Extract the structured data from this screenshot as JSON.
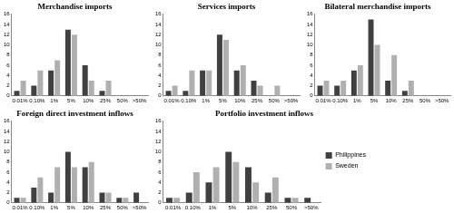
{
  "chart_data": [
    {
      "type": "bar",
      "title": "Merchandise imports",
      "categories": [
        "0.01%",
        "0.10%",
        "1%",
        "5%",
        "10%",
        "25%",
        "50%",
        ">50%"
      ],
      "series": [
        {
          "name": "Philippines",
          "color": "#404040",
          "values": [
            1,
            2,
            5,
            13,
            6,
            1,
            0,
            0
          ]
        },
        {
          "name": "Sweden",
          "color": "#b0b0b0",
          "values": [
            3,
            5,
            7,
            12,
            3,
            3,
            0,
            0
          ]
        }
      ],
      "ylim": [
        0,
        16
      ],
      "yticks": [
        0,
        2,
        4,
        6,
        8,
        10,
        12,
        14,
        16
      ],
      "grid": false
    },
    {
      "type": "bar",
      "title": "Services imports",
      "categories": [
        "0.01%",
        "0.10%",
        "1%",
        "5%",
        "10%",
        "25%",
        "50%",
        ">50%"
      ],
      "series": [
        {
          "name": "Philippines",
          "color": "#404040",
          "values": [
            1,
            1,
            5,
            12,
            5,
            3,
            0,
            0
          ]
        },
        {
          "name": "Sweden",
          "color": "#b0b0b0",
          "values": [
            2,
            5,
            5,
            11,
            6,
            2,
            2,
            0
          ]
        }
      ],
      "ylim": [
        0,
        16
      ],
      "yticks": [
        0,
        2,
        4,
        6,
        8,
        10,
        12,
        14,
        16
      ],
      "grid": false
    },
    {
      "type": "bar",
      "title": "Bilateral merchandise imports",
      "categories": [
        "0.01%",
        "0.10%",
        "1%",
        "5%",
        "10%",
        "25%",
        "50%",
        ">50%"
      ],
      "series": [
        {
          "name": "Philippines",
          "color": "#404040",
          "values": [
            2,
            2,
            5,
            15,
            3,
            1,
            0,
            0
          ]
        },
        {
          "name": "Sweden",
          "color": "#b0b0b0",
          "values": [
            3,
            3,
            6,
            10,
            8,
            3,
            0,
            0
          ]
        }
      ],
      "ylim": [
        0,
        16
      ],
      "yticks": [
        0,
        2,
        4,
        6,
        8,
        10,
        12,
        14,
        16
      ],
      "grid": false
    },
    {
      "type": "bar",
      "title": "Foreign direct investment inflows",
      "categories": [
        "0.01%",
        "0.10%",
        "1%",
        "5%",
        "10%",
        "25%",
        "50%",
        ">50%"
      ],
      "series": [
        {
          "name": "Philippines",
          "color": "#404040",
          "values": [
            1,
            3,
            2,
            10,
            7,
            2,
            1,
            2
          ]
        },
        {
          "name": "Sweden",
          "color": "#b0b0b0",
          "values": [
            1,
            5,
            7,
            7,
            8,
            2,
            1,
            0
          ]
        }
      ],
      "ylim": [
        0,
        16
      ],
      "yticks": [
        0,
        2,
        4,
        6,
        8,
        10,
        12,
        14,
        16
      ],
      "grid": false
    },
    {
      "type": "bar",
      "title": "Portfolio investment inflows",
      "categories": [
        "0.01%",
        "0.10%",
        "1%",
        "5%",
        "10%",
        "25%",
        "50%",
        ">50%"
      ],
      "series": [
        {
          "name": "Philippines",
          "color": "#404040",
          "values": [
            1,
            2,
            4,
            10,
            7,
            2,
            1,
            1
          ]
        },
        {
          "name": "Sweden",
          "color": "#b0b0b0",
          "values": [
            1,
            6,
            7,
            8,
            4,
            5,
            1,
            0
          ]
        }
      ],
      "ylim": [
        0,
        16
      ],
      "yticks": [
        0,
        2,
        4,
        6,
        8,
        10,
        12,
        14,
        16
      ],
      "grid": false,
      "legend": "right"
    }
  ]
}
